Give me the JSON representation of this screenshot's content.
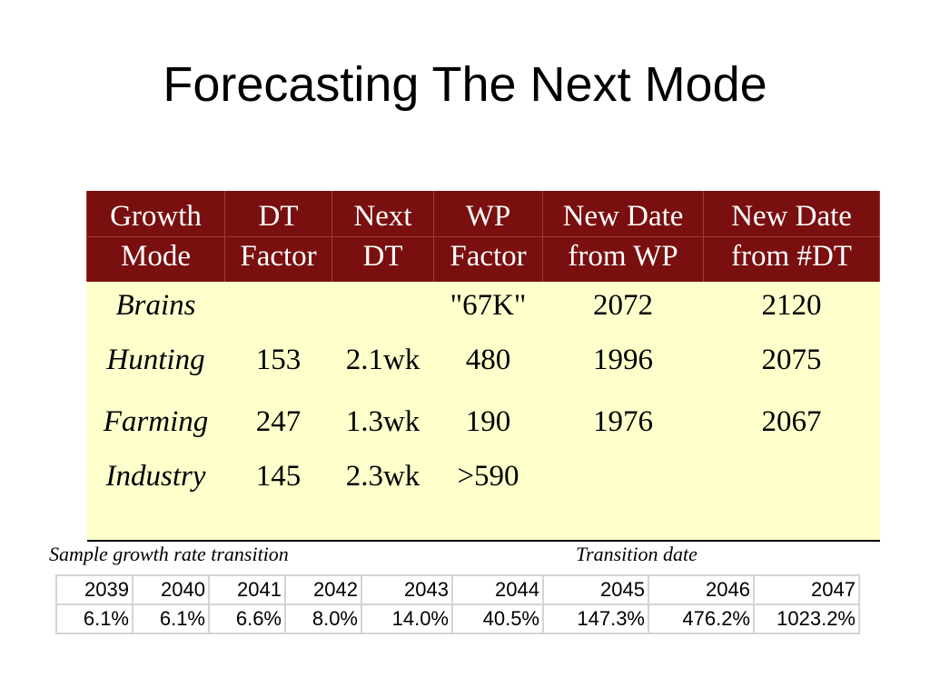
{
  "title": "Forecasting The Next Mode",
  "main_table": {
    "headers": [
      [
        "Growth",
        "Mode"
      ],
      [
        "DT",
        "Factor"
      ],
      [
        "Next",
        "DT"
      ],
      [
        "WP",
        "Factor"
      ],
      [
        "New Date",
        "from WP"
      ],
      [
        "New Date",
        "from #DT"
      ]
    ],
    "rows": [
      [
        "Brains",
        "",
        "",
        "\"67K\"",
        "2072",
        "2120"
      ],
      [
        "Hunting",
        "153",
        "2.1wk",
        "480",
        "1996",
        "2075"
      ],
      [
        "Farming",
        "247",
        "1.3wk",
        "190",
        "1976",
        "2067"
      ],
      [
        "Industry",
        "145",
        "2.3wk",
        ">590",
        "",
        ""
      ]
    ],
    "colors": {
      "header_bg": "#7a0f0f",
      "header_text": "#ffffff",
      "body_bg": "#ffffcc"
    }
  },
  "notes": {
    "left": "Sample growth rate transition",
    "right": "Transition date"
  },
  "rate_table": {
    "years": [
      "2039",
      "2040",
      "2041",
      "2042",
      "2043",
      "2044",
      "2045",
      "2046",
      "2047"
    ],
    "rates": [
      "6.1%",
      "6.1%",
      "6.6%",
      "8.0%",
      "14.0%",
      "40.5%",
      "147.3%",
      "476.2%",
      "1023.2%"
    ]
  }
}
